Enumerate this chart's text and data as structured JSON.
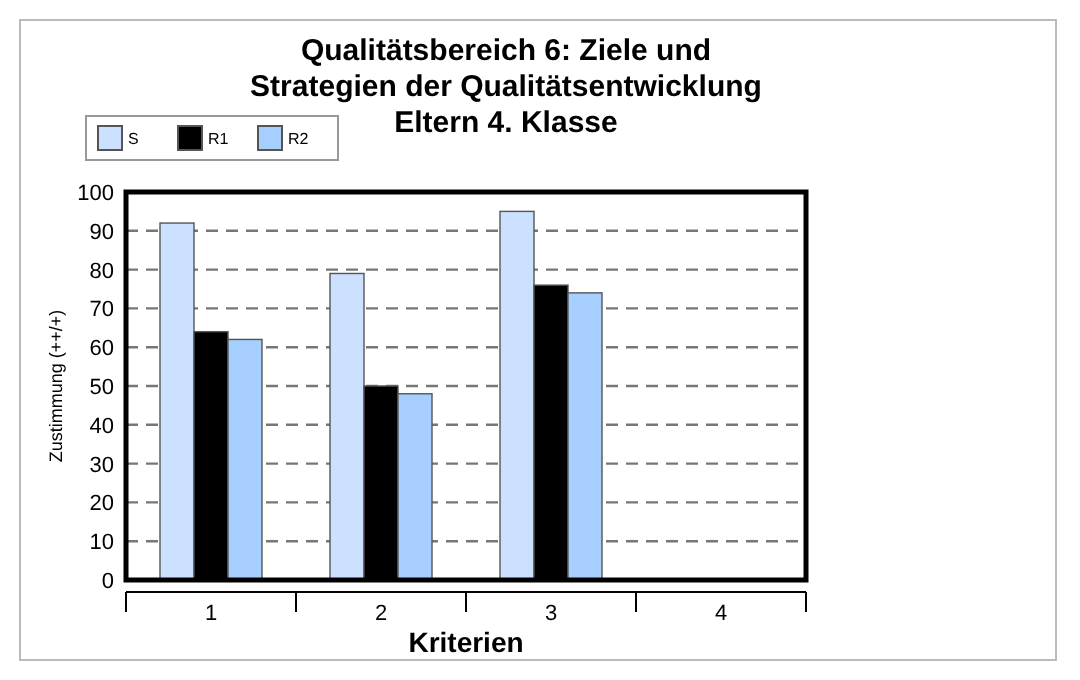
{
  "chart_data": {
    "type": "bar",
    "title": "Qualitätsbereich 6: Ziele und\nStrategien der Qualitätsentwicklung\nEltern 4. Klasse",
    "xlabel": "Kriterien",
    "ylabel": "Zustimmung (++/+)",
    "categories": [
      "1",
      "2",
      "3",
      "4"
    ],
    "series": [
      {
        "name": "S",
        "color": "#cce0ff",
        "values": [
          92,
          79,
          95,
          null
        ]
      },
      {
        "name": "R1",
        "color": "#000000",
        "values": [
          64,
          50,
          76,
          null
        ]
      },
      {
        "name": "R2",
        "color": "#a6cfff",
        "values": [
          62,
          48,
          74,
          null
        ]
      }
    ],
    "ylim": [
      0,
      100
    ],
    "yticks": [
      0,
      10,
      20,
      30,
      40,
      50,
      60,
      70,
      80,
      90,
      100
    ],
    "grid": "y",
    "legend": "top left"
  }
}
